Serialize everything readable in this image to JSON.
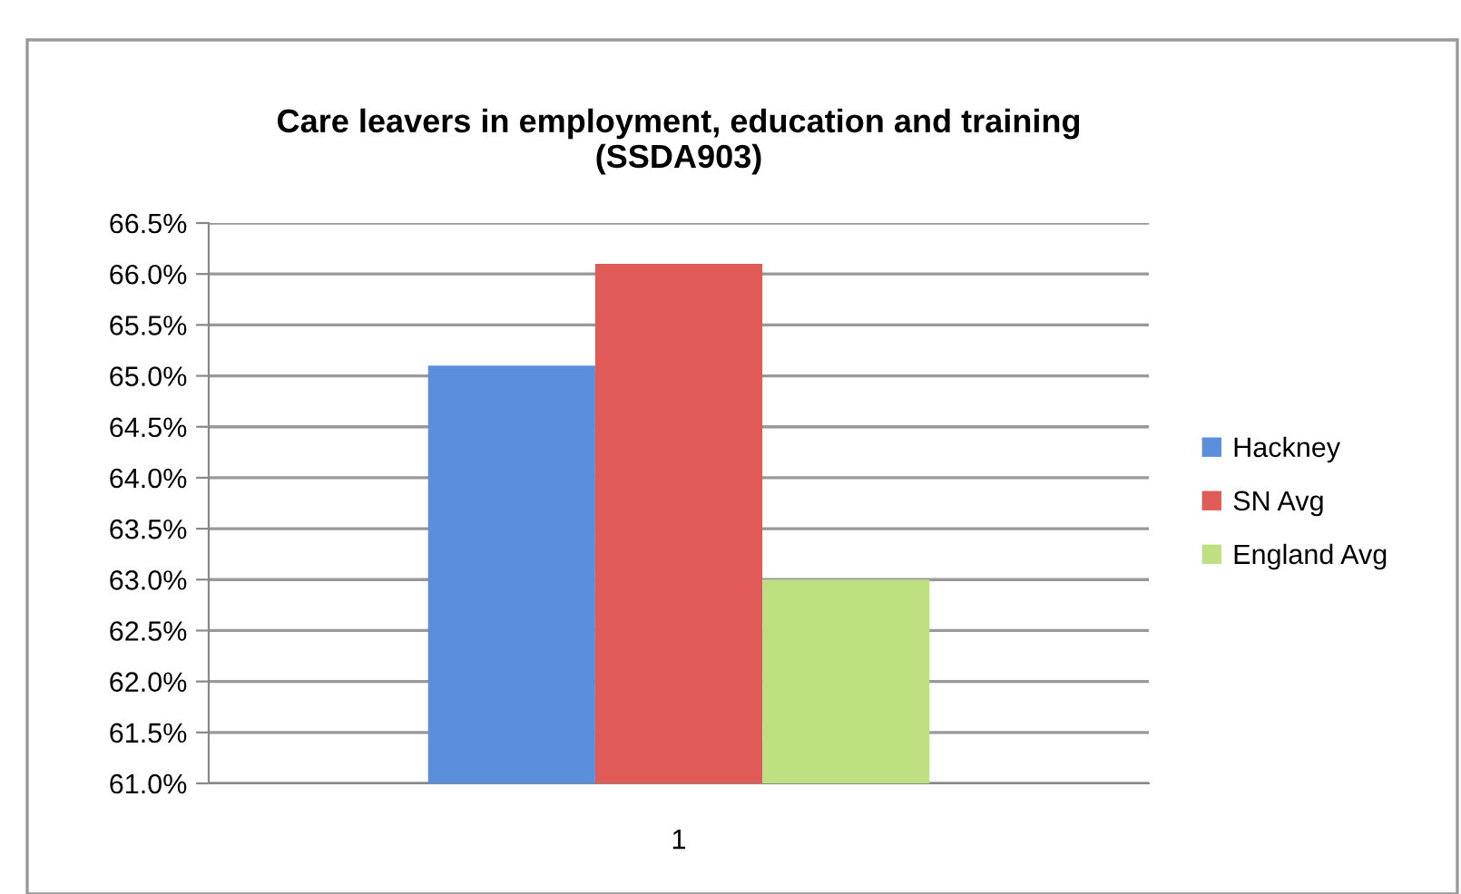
{
  "chart_data": {
    "type": "bar",
    "title": "Care leavers in employment, education and training\n(SSDA903)",
    "categories": [
      "1"
    ],
    "series": [
      {
        "name": "Hackney",
        "color": "#5b8fdc",
        "values": [
          65.1
        ]
      },
      {
        "name": "SN Avg",
        "color": "#e05a58",
        "values": [
          66.1
        ]
      },
      {
        "name": "England Avg",
        "color": "#bfe080",
        "values": [
          63.0
        ]
      }
    ],
    "ylim": [
      61.0,
      66.5
    ],
    "yticks": [
      {
        "value": 61.0,
        "label": "61.0%"
      },
      {
        "value": 61.5,
        "label": "61.5%"
      },
      {
        "value": 62.0,
        "label": "62.0%"
      },
      {
        "value": 62.5,
        "label": "62.5%"
      },
      {
        "value": 63.0,
        "label": "63.0%"
      },
      {
        "value": 63.5,
        "label": "63.5%"
      },
      {
        "value": 64.0,
        "label": "64.0%"
      },
      {
        "value": 64.5,
        "label": "64.5%"
      },
      {
        "value": 65.0,
        "label": "65.0%"
      },
      {
        "value": 65.5,
        "label": "65.5%"
      },
      {
        "value": 66.0,
        "label": "66.0%"
      },
      {
        "value": 66.5,
        "label": "66.5%"
      }
    ],
    "grid": "y",
    "legend": "right"
  }
}
